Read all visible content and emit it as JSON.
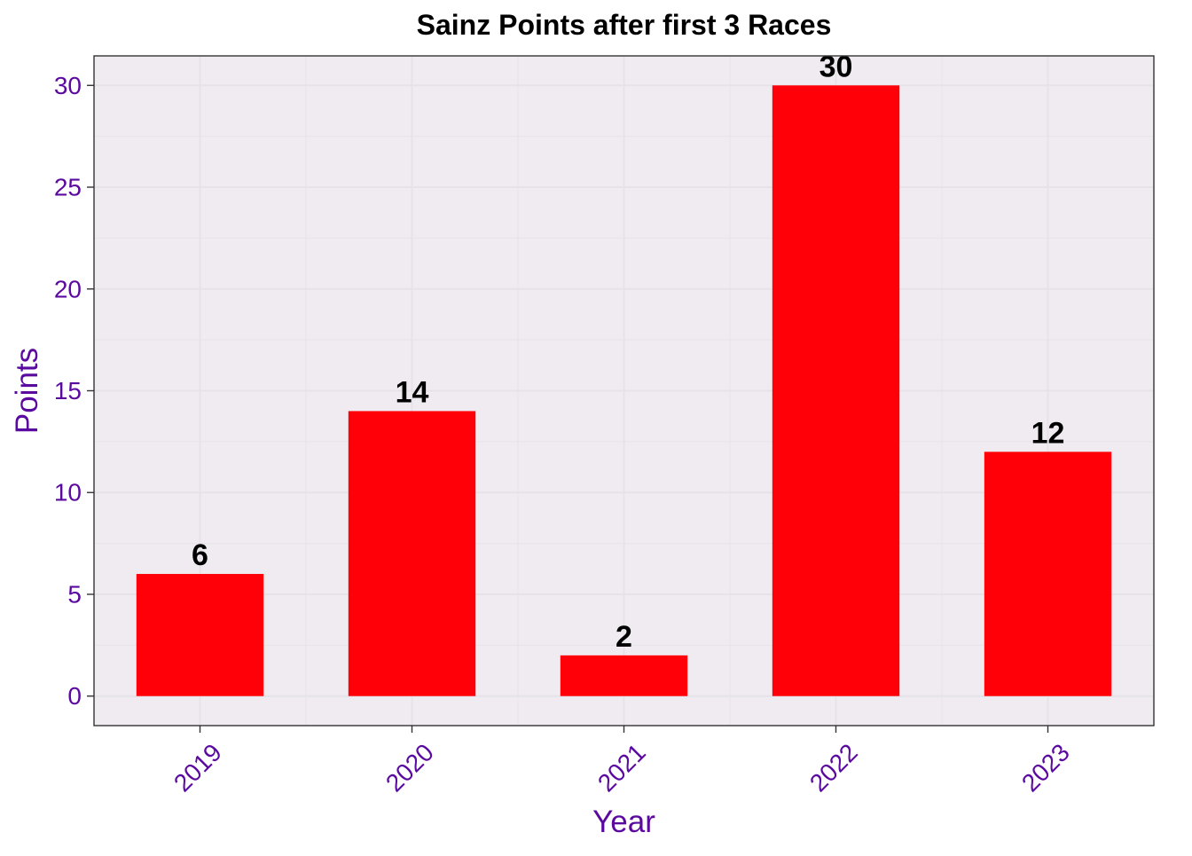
{
  "chart_data": {
    "type": "bar",
    "title": "Sainz Points after first 3 Races",
    "xlabel": "Year",
    "ylabel": "Points",
    "categories": [
      "2019",
      "2020",
      "2021",
      "2022",
      "2023"
    ],
    "values": [
      6,
      14,
      2,
      30,
      12
    ],
    "data_labels": [
      "6",
      "14",
      "2",
      "30",
      "12"
    ],
    "ylim": [
      -1.45,
      31.45
    ],
    "yticks": [
      0,
      5,
      10,
      15,
      20,
      25,
      30
    ],
    "ytick_labels": [
      "0",
      "5",
      "10",
      "15",
      "20",
      "25",
      "30"
    ],
    "grid": true,
    "legend": "none",
    "x_tick_rotation_deg": 45
  },
  "colors": {
    "bar": "#FF0008",
    "panel_background": "#F0EBF1",
    "grid": "#E6E3E8",
    "axis_text": "#5B0AA0",
    "title_text": "#000000",
    "data_label_text": "#000000",
    "panel_border": "#333333"
  }
}
